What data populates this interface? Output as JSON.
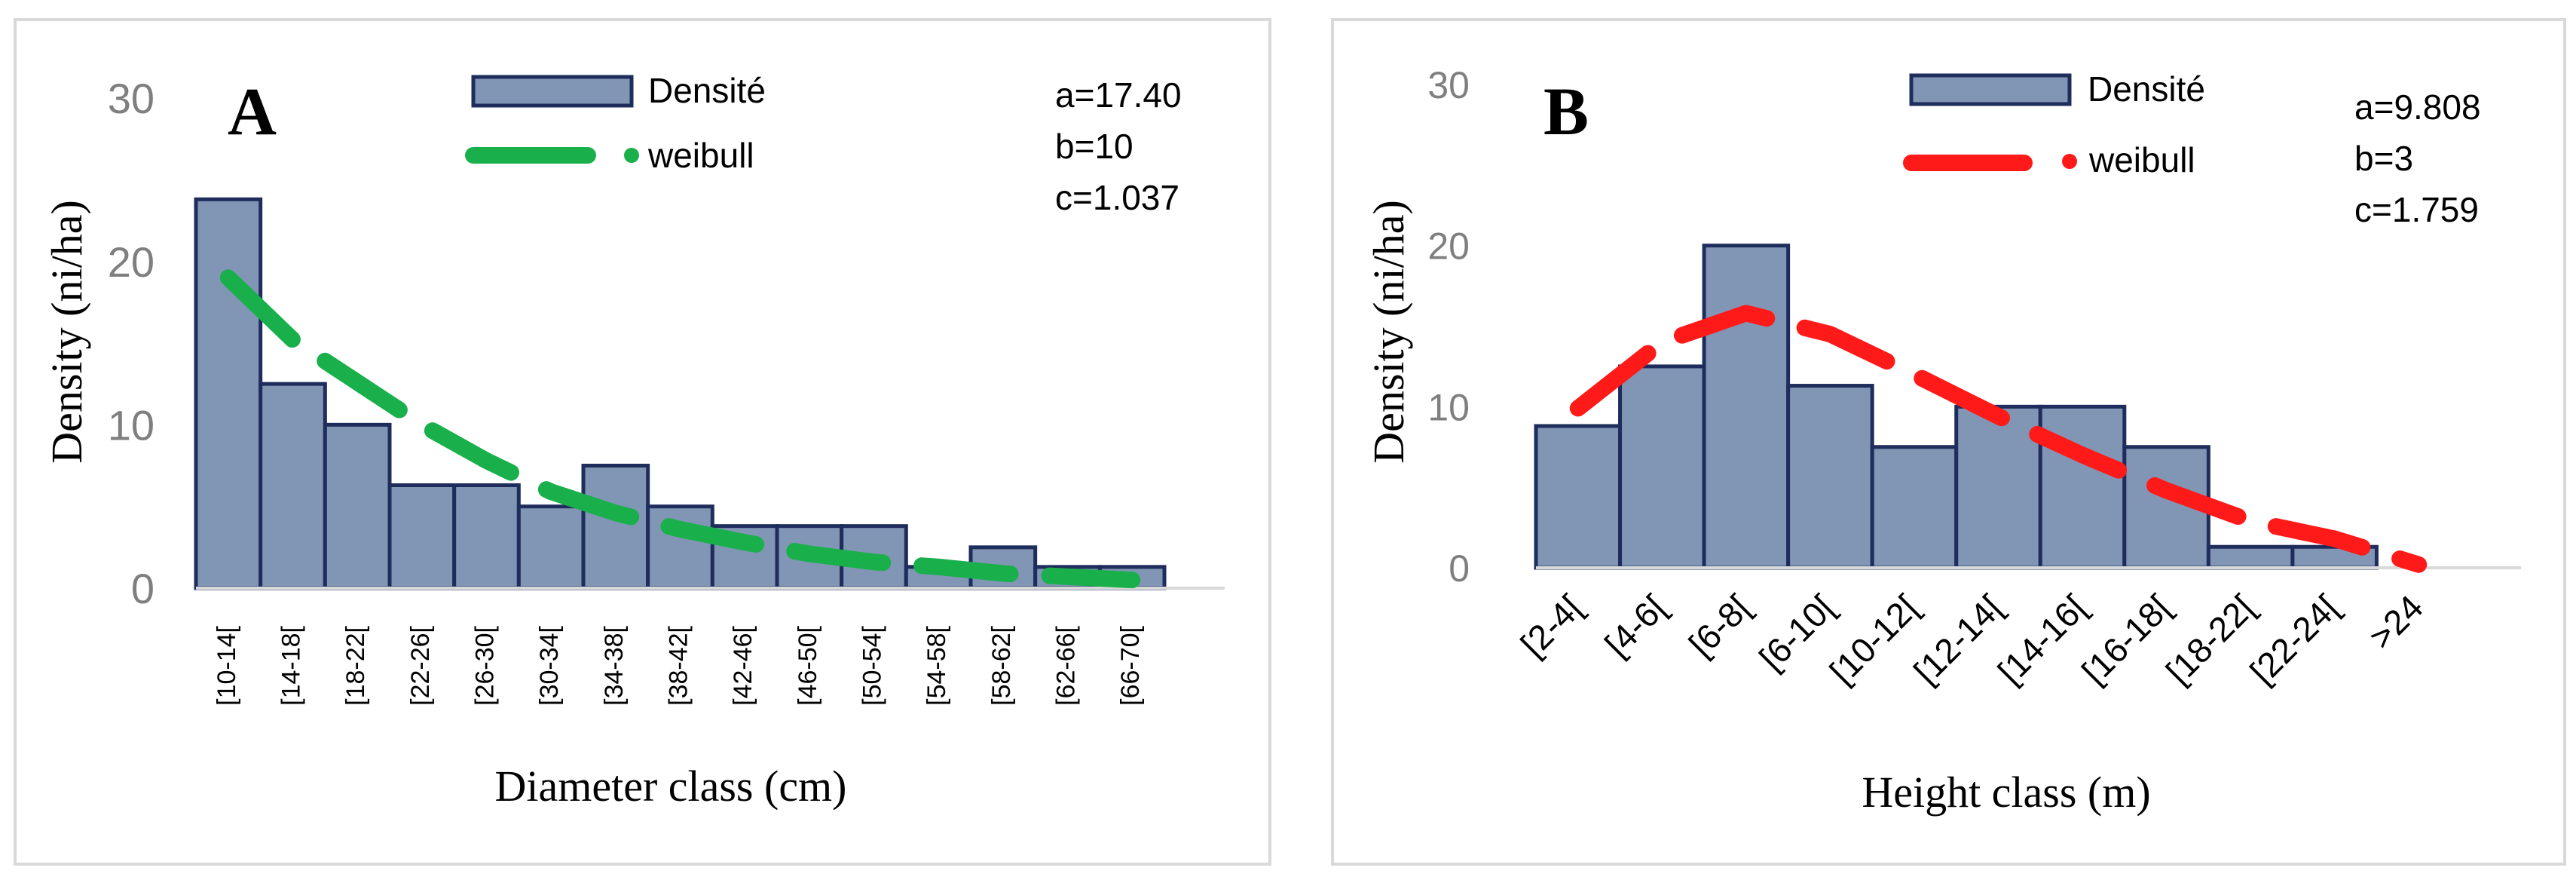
{
  "chart_data": [
    {
      "type": "bar",
      "panel_label": "A",
      "title": "",
      "xlabel": "Diameter class (cm)",
      "ylabel": "Density (ni/ha)",
      "ylim": [
        0,
        30
      ],
      "yticks": [
        "0",
        "10",
        "20",
        "30"
      ],
      "categories": [
        "[10-14[",
        "[14-18[",
        "[18-22[",
        "[22-26[",
        "[26-30[",
        "[30-34[",
        "[34-38[",
        "[38-42[",
        "[42-46[",
        "[46-50[",
        "[50-54[",
        "[54-58[",
        "[58-62[",
        "[62-66[",
        "[66-70["
      ],
      "series": [
        {
          "name": "Densité",
          "type": "bar",
          "values": [
            23.8,
            12.5,
            10,
            6.3,
            6.3,
            5,
            7.5,
            5,
            3.8,
            3.8,
            3.8,
            1.3,
            2.5,
            1.3,
            1.3
          ]
        },
        {
          "name": "weibull",
          "type": "line",
          "values": [
            19,
            15.2,
            12.6,
            10,
            7.8,
            5.9,
            4.6,
            3.6,
            2.8,
            2.1,
            1.6,
            1.3,
            0.9,
            0.7,
            0.5
          ]
        }
      ],
      "params": [
        "a=17.40",
        "b=10",
        "c=1.037"
      ],
      "colors": {
        "bar_fill": "#8096b4",
        "bar_stroke": "#1f2d5c",
        "line": "#19b04b",
        "axis_tick": "#7f7f7f",
        "axis_line": "#d9d9d9"
      }
    },
    {
      "type": "bar",
      "panel_label": "B",
      "title": "",
      "xlabel": "Height class (m)",
      "ylabel": "Density (ni/ha)",
      "ylim": [
        0,
        30
      ],
      "yticks": [
        "0",
        "10",
        "20",
        "30"
      ],
      "categories": [
        "[2-4[",
        "[4-6[",
        "[6-8[",
        "[6-10[",
        "[10-12[",
        "[12-14[",
        "[14-16[",
        "[16-18[",
        "[18-22[",
        "[22-24[",
        ">24"
      ],
      "series": [
        {
          "name": "Densité",
          "type": "bar",
          "values": [
            8.8,
            12.5,
            20,
            11.3,
            7.5,
            10,
            10,
            7.5,
            1.3,
            1.3,
            0
          ]
        },
        {
          "name": "weibull",
          "type": "line",
          "values": [
            9.9,
            14,
            15.8,
            14.5,
            12,
            9.4,
            7,
            4.8,
            2.9,
            1.8,
            0.2
          ]
        }
      ],
      "params": [
        "a=9.808",
        "b=3",
        "c=1.759"
      ],
      "colors": {
        "bar_fill": "#8096b4",
        "bar_stroke": "#1f2d5c",
        "line": "#ff1a1a",
        "axis_tick": "#7f7f7f",
        "axis_line": "#d9d9d9"
      }
    }
  ]
}
